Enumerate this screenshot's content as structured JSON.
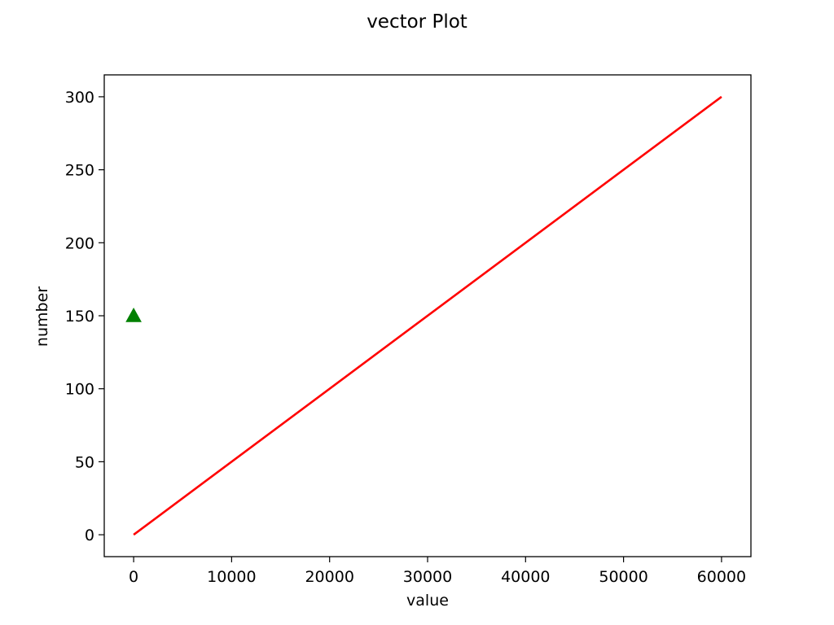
{
  "chart_data": {
    "type": "line",
    "title": "vector Plot",
    "xlabel": "value",
    "ylabel": "number",
    "xlim": [
      -3000,
      63000
    ],
    "ylim": [
      -15,
      315
    ],
    "xticks": [
      0,
      10000,
      20000,
      30000,
      40000,
      50000,
      60000
    ],
    "yticks": [
      0,
      50,
      100,
      150,
      200,
      250,
      300
    ],
    "grid": false,
    "series": [
      {
        "kind": "line",
        "color": "#ff0000",
        "x": [
          0,
          60000
        ],
        "y": [
          0,
          300
        ]
      },
      {
        "kind": "marker",
        "marker": "triangle-up",
        "color": "#008000",
        "x": [
          0
        ],
        "y": [
          150
        ]
      }
    ]
  }
}
